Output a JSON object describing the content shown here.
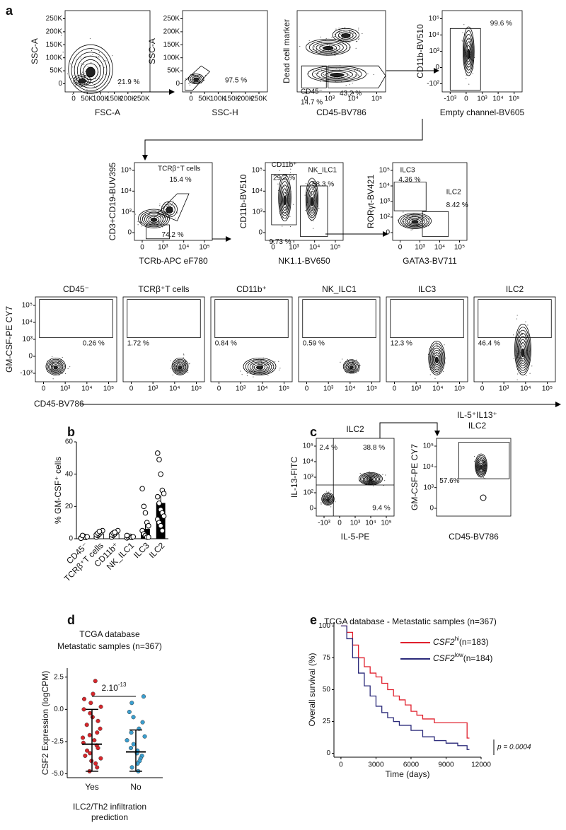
{
  "panel_labels": [
    "a",
    "b",
    "c",
    "d",
    "e"
  ],
  "flow_plots": [
    {
      "xlabel": "FSC-A",
      "ylabel": "SSC-A",
      "xticks": [
        "0",
        "50K",
        "100K",
        "150K",
        "200K",
        "250K"
      ],
      "yticks": [
        "0",
        "50K",
        "100K",
        "150K",
        "200K",
        "250K"
      ],
      "gates": [
        "21.9 %"
      ]
    },
    {
      "xlabel": "SSC-H",
      "ylabel": "SSC-A",
      "xticks": [
        "0",
        "50K",
        "100K",
        "150K",
        "200K",
        "250K"
      ],
      "yticks": [
        "0",
        "50K",
        "100K",
        "150K",
        "200K",
        "250K"
      ],
      "gates": [
        "97.5 %"
      ]
    },
    {
      "xlabel": "CD45-BV786",
      "ylabel": "Dead cell marker",
      "xticks": [
        "0",
        "10³",
        "10⁴",
        "10⁵"
      ],
      "yticks": [],
      "gates": [
        "CD45⁻",
        "14.7 %",
        "43.2 %"
      ]
    },
    {
      "xlabel": "Empty channel-BV605",
      "ylabel": "CD11b-BV510",
      "xticks": [
        "-10³",
        "0",
        "10³",
        "10⁴",
        "10⁵"
      ],
      "yticks": [
        "-10²",
        "0",
        "10³",
        "10⁴",
        "10⁵"
      ],
      "gates": [
        "99.6 %"
      ]
    },
    {
      "xlabel": "TCRb-APC eF780",
      "ylabel": "CD3+CD19-BUV395",
      "xticks": [
        "0",
        "10³",
        "10⁴",
        "10⁵"
      ],
      "yticks": [
        "0",
        "10³",
        "10⁴",
        "10⁵"
      ],
      "gates": [
        "TCRβ⁺T cells",
        "15.4 %",
        "74.2 %"
      ]
    },
    {
      "xlabel": "NK1.1-BV650",
      "ylabel": "CD11b-BV510",
      "xticks": [
        "0",
        "10³",
        "10⁴",
        "10⁵"
      ],
      "yticks": [
        "0",
        "10³",
        "10⁴",
        "10⁵"
      ],
      "gates": [
        "CD11b⁺",
        "29.2 %",
        "NK_ILC1",
        "58.3 %",
        "9.73 %"
      ]
    },
    {
      "xlabel": "GATA3-BV711",
      "ylabel": "RORγt-BV421",
      "xticks": [
        "0",
        "10³",
        "10⁴",
        "10⁵"
      ],
      "yticks": [
        "0",
        "10²",
        "10³",
        "10⁴",
        "10⁵"
      ],
      "gates": [
        "ILC3",
        "4.36 %",
        "ILC2",
        "8.42 %"
      ]
    }
  ],
  "gm_csf_row": {
    "ylabel": "GM-CSF-PE CY7",
    "xlabel": "CD45-BV786",
    "yticks": [
      "-10³",
      "0",
      "10³",
      "10⁴",
      "10⁵"
    ],
    "xticks": [
      "0",
      "10³",
      "10⁴",
      "10⁵"
    ],
    "plots": [
      {
        "title": "CD45⁻",
        "percent": "0.26 %"
      },
      {
        "title": "TCRβ⁺T cells",
        "percent": "1.72 %"
      },
      {
        "title": "CD11b⁺",
        "percent": "0.84 %"
      },
      {
        "title": "NK_ILC1",
        "percent": "0.59 %"
      },
      {
        "title": "ILC3",
        "percent": "12.3 %"
      },
      {
        "title": "ILC2",
        "percent": "46.4 %"
      }
    ]
  },
  "panel_c": [
    {
      "title": [
        "ILC2"
      ],
      "xlabel": "IL-5-PE",
      "ylabel": "IL-13-FITC",
      "xticks": [
        "-10³",
        "0",
        "10³",
        "10⁴",
        "10⁵"
      ],
      "yticks": [
        "0",
        "10²",
        "10³",
        "10⁴",
        "10⁵"
      ],
      "gates": [
        "2.4 %",
        "38.8 %",
        "9.4 %"
      ]
    },
    {
      "title": [
        "IL-5⁺IL13⁺",
        "ILC2"
      ],
      "xlabel": "CD45-BV786",
      "ylabel": "GM-CSF-PE CY7",
      "xticks": [],
      "yticks": [
        "0",
        "10³",
        "10⁴",
        "10⁵"
      ],
      "gates": [
        "57.6%"
      ]
    }
  ],
  "chart_data": [
    {
      "type": "bar",
      "ylabel": "% GM-CSF⁺ cells",
      "categories": [
        "CD45⁻",
        "TCRβ⁺T cells",
        "CD11b⁺",
        "NK_ILC1",
        "ILC3",
        "ILC2"
      ],
      "values": [
        1,
        3,
        3,
        1,
        6,
        22
      ],
      "errors": [
        0.3,
        0.6,
        0.6,
        0.3,
        2.5,
        5
      ],
      "colors": [
        "#ffffff",
        "#ffffff",
        "#ffffff",
        "#ffffff",
        "#000000",
        "#000000"
      ],
      "points": [
        [
          0.5,
          1,
          1.5,
          0.8,
          1.2,
          0.3,
          2
        ],
        [
          1,
          2,
          3,
          4,
          5,
          2.5,
          3.5,
          4.5
        ],
        [
          1,
          2,
          3,
          4,
          5,
          2.5,
          3.5,
          4
        ],
        [
          0.5,
          1,
          1.5,
          0.8,
          1.2,
          2
        ],
        [
          31,
          20,
          16,
          10,
          8,
          5,
          3,
          2,
          1,
          1
        ],
        [
          53,
          49,
          40,
          30,
          28,
          26,
          22,
          18,
          16,
          14,
          12,
          10,
          8,
          5
        ]
      ],
      "ylim": [
        0,
        60
      ],
      "yticks": [
        0,
        20,
        40,
        60
      ]
    },
    {
      "type": "strip",
      "title": [
        "TCGA database",
        "Metastatic samples (n=367)"
      ],
      "ylabel": "CSF2 Expression (logCPM)",
      "xlabel": [
        "ILC2/Th2 infiltration",
        "prediction"
      ],
      "categories": [
        "Yes",
        "No"
      ],
      "groups": [
        {
          "color": "#d7262b",
          "values": [
            2.2,
            1.2,
            0.8,
            0.5,
            0.2,
            0,
            -0.3,
            -0.6,
            -0.9,
            -1.2,
            -1.5,
            -1.8,
            -2.0,
            -2.2,
            -2.4,
            -2.6,
            -2.8,
            -3.0,
            -3.2,
            -3.4,
            -3.6,
            -3.8,
            -4.0,
            -4.2,
            -4.5,
            -4.8
          ],
          "median": -2.7,
          "upper": 0.0,
          "lower": -4.8
        },
        {
          "color": "#3a9fd0",
          "values": [
            1.0,
            0.5,
            -0.2,
            -0.6,
            -1.0,
            -1.5,
            -1.8,
            -2.1,
            -2.4,
            -2.7,
            -3.0,
            -3.2,
            -3.4,
            -3.6,
            -3.8,
            -4.0,
            -4.2,
            -4.5,
            -4.8
          ],
          "median": -3.3,
          "upper": -1.6,
          "lower": -4.8
        }
      ],
      "annotation": {
        "base": "2.10",
        "exponent": "-13"
      },
      "ylim": [
        -5.3,
        3.2
      ],
      "yticks": [
        {
          "value": -5,
          "label": "-5.0"
        },
        {
          "value": -2.5,
          "label": "-2.5"
        },
        {
          "value": 0,
          "label": "0.0"
        },
        {
          "value": 2.5,
          "label": "2.5"
        }
      ]
    },
    {
      "type": "line",
      "title": "TCGA database - Metastatic samples (n=367)",
      "xlabel": "Time (days)",
      "ylabel": "Overall survival (%)",
      "series": [
        {
          "name": {
            "gene": "CSF2",
            "level": "hi",
            "n": "(n=183)"
          },
          "color": "#e0202d",
          "x": [
            0,
            500,
            1000,
            1500,
            2000,
            2500,
            3000,
            3500,
            4000,
            4500,
            5000,
            5500,
            6000,
            6500,
            7000,
            8000,
            9000,
            10000,
            10800,
            11000
          ],
          "values": [
            100,
            95,
            85,
            75,
            68,
            63,
            60,
            55,
            50,
            45,
            42,
            38,
            33,
            30,
            27,
            24,
            24,
            24,
            12,
            12
          ]
        },
        {
          "name": {
            "gene": "CSF2",
            "level": "low",
            "n": "(n=184)"
          },
          "color": "#2b2a7a",
          "x": [
            0,
            500,
            1000,
            1500,
            2000,
            2500,
            3000,
            3500,
            4000,
            4500,
            5000,
            6000,
            7000,
            8000,
            9000,
            10000,
            10800,
            11000
          ],
          "values": [
            100,
            90,
            75,
            63,
            53,
            45,
            37,
            32,
            28,
            25,
            22,
            18,
            13,
            10,
            8,
            6,
            3,
            3
          ]
        }
      ],
      "annotation": "p = 0.0004",
      "xlim": [
        -600,
        12000
      ],
      "xticks": [
        0,
        3000,
        6000,
        9000,
        12000
      ],
      "ylim": [
        -3,
        103
      ],
      "yticks": [
        0,
        25,
        50,
        75,
        100
      ]
    }
  ]
}
